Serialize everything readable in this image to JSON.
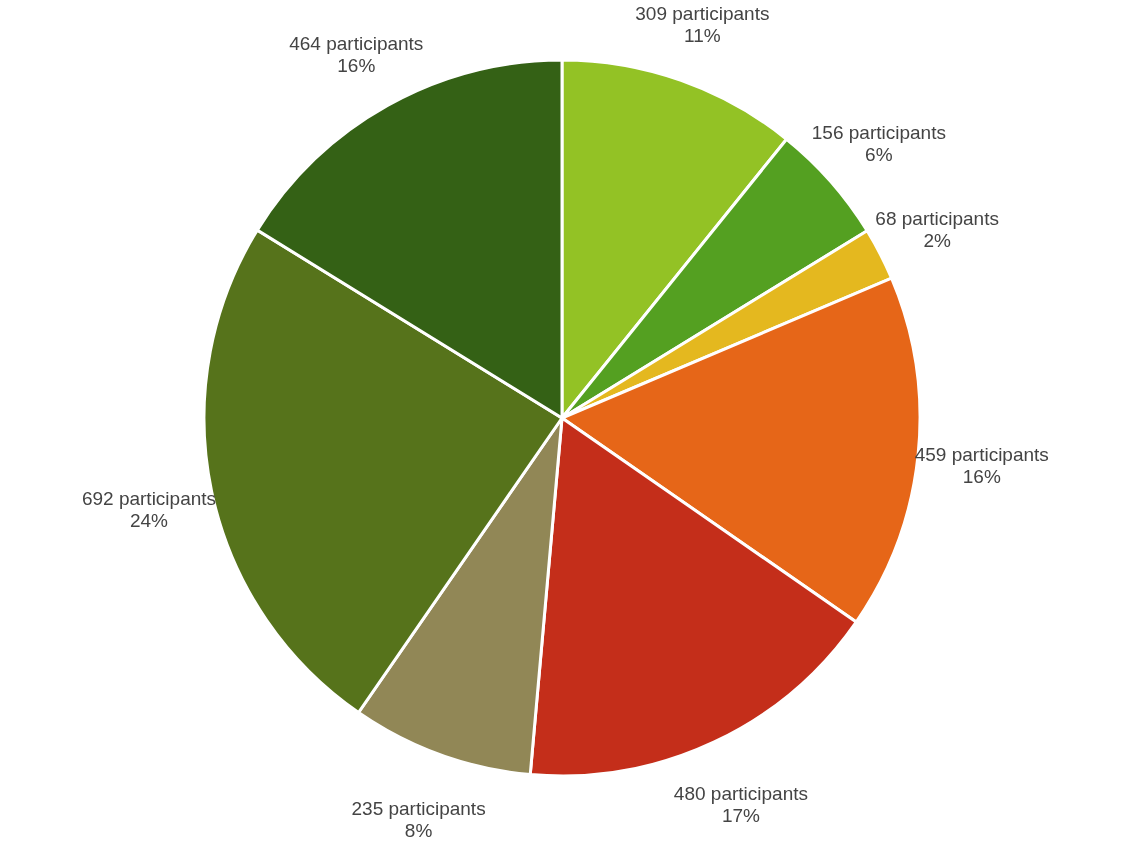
{
  "chart_data": {
    "type": "pie",
    "categories": [
      null,
      null,
      null,
      null,
      null,
      null,
      null,
      null
    ],
    "values": [
      309,
      156,
      68,
      459,
      480,
      235,
      692,
      464
    ],
    "colors": [
      "#93c225",
      "#54a021",
      "#e4b81f",
      "#e66618",
      "#c42e1a",
      "#918756",
      "#56731b",
      "#346115"
    ],
    "value_labels": [
      "309 participants\n11%",
      "156 participants\n6%",
      "68 participants\n2%",
      "459 participants\n16%",
      "480 participants\n17%",
      "235 participants\n8%",
      "692 participants\n24%",
      "464 participants\n16%"
    ]
  }
}
